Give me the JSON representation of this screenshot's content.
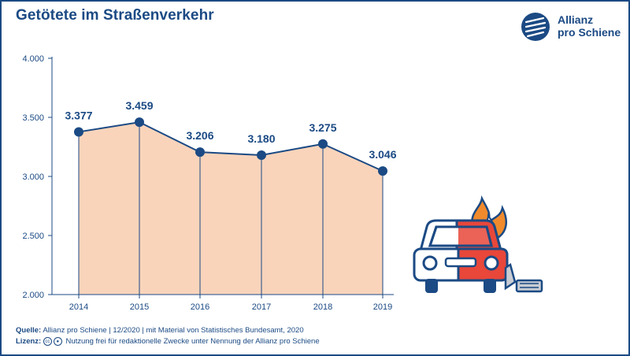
{
  "title": "Getötete im Straßenverkehr",
  "logo": {
    "line1": "Allianz",
    "line2": "pro Schiene"
  },
  "chart_data": {
    "type": "area",
    "x": [
      "2014",
      "2015",
      "2016",
      "2017",
      "2018",
      "2019"
    ],
    "values": [
      3377,
      3459,
      3206,
      3180,
      3275,
      3046
    ],
    "value_labels": [
      "3.377",
      "3.459",
      "3.206",
      "3.180",
      "3.275",
      "3.046"
    ],
    "y_ticks": [
      "2.000",
      "2.500",
      "3.000",
      "3.500",
      "4.000"
    ],
    "y_tick_values": [
      2000,
      2500,
      3000,
      3500,
      4000
    ],
    "ylim": [
      2000,
      4000
    ],
    "line_color": "#1b4a84",
    "fill_color": "#f9d4bb",
    "grid": false
  },
  "footer": {
    "source_label": "Quelle:",
    "source_text": "Allianz pro Schiene | 12/2020 | mit Material von Statistisches Bundesamt, 2020",
    "license_label": "Lizenz:",
    "license_text": "Nutzung frei für redaktionelle Zwecke unter Nennung der Allianz pro Schiene"
  },
  "icons": [
    "allianz-logo-icon",
    "burning-car-icon",
    "cc-icon",
    "by-icon"
  ],
  "colors": {
    "brand": "#1b4a84",
    "car_red": "#e8473a",
    "flame_orange": "#f08a2c"
  }
}
